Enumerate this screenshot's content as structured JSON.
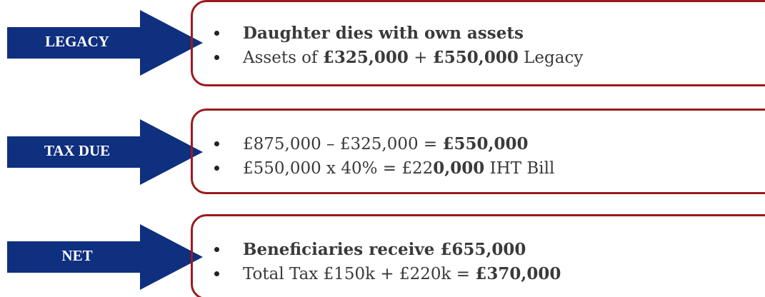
{
  "rows": [
    {
      "label": "LEGACY",
      "bullets": [
        [
          {
            "text": "Daughter dies with own assets",
            "bold": true
          }
        ],
        [
          {
            "text": "Assets of ",
            "bold": false
          },
          {
            "text": "£325,000",
            "bold": true
          },
          {
            "text": " + ",
            "bold": false
          },
          {
            "text": "£550,000",
            "bold": true
          },
          {
            "text": " Legacy",
            "bold": false
          }
        ]
      ]
    },
    {
      "label": "TAX DUE",
      "bullets": [
        [
          {
            "text": "£875,000 – £325,000 = ",
            "bold": false
          },
          {
            "text": "£550,000",
            "bold": true
          }
        ],
        [
          {
            "text": "£550,000 x 40% = £22",
            "bold": false
          },
          {
            "text": "0,000",
            "bold": true
          },
          {
            "text": " IHT Bill",
            "bold": false
          }
        ]
      ]
    },
    {
      "label": "NET",
      "bullets": [
        [
          {
            "text": "Beneficiaries receive £655,000",
            "bold": true
          }
        ],
        [
          {
            "text": "Total Tax £150k + £220k = ",
            "bold": false
          },
          {
            "text": "£370,000",
            "bold": true
          }
        ]
      ]
    }
  ]
}
